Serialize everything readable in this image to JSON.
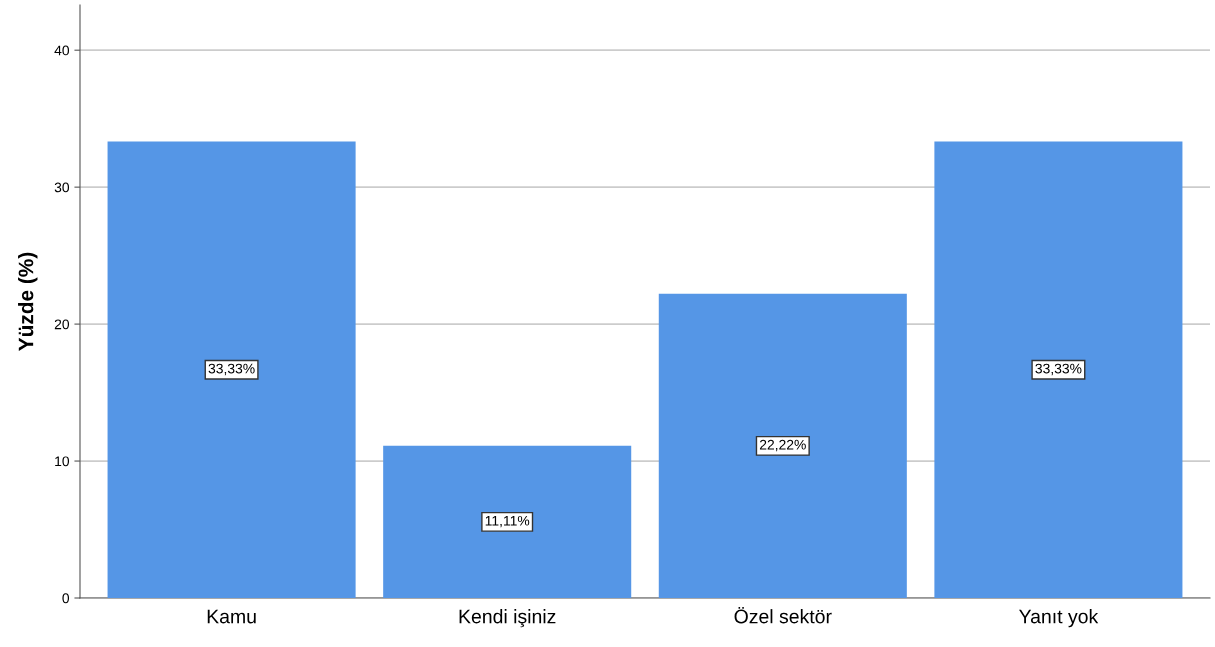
{
  "chart_data": {
    "type": "bar",
    "ylabel": "Yüzde (%)",
    "categories": [
      "Kamu",
      "Kendi işiniz",
      "Özel sektör",
      "Yanıt yok"
    ],
    "values": [
      33.33,
      11.11,
      22.22,
      33.33
    ],
    "value_labels": [
      "33,33%",
      "11,11%",
      "22,22%",
      "33,33%"
    ],
    "color": "#5596e6",
    "ylim": [
      0,
      43.3
    ],
    "yticks": [
      0,
      10,
      20,
      30,
      40
    ],
    "grid": "y",
    "legend": false
  }
}
